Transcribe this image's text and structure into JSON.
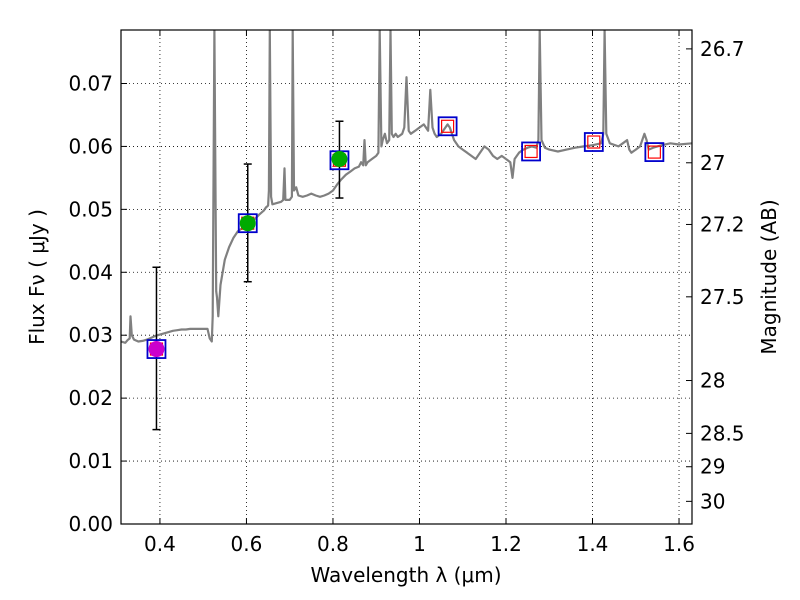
{
  "chart_data": {
    "type": "scatter",
    "xlabel": "Wavelength  λ (μm)",
    "ylabel": "Flux  Fν  ( μJy )",
    "y2label": "Magnitude (AB)",
    "xlim": [
      0.31,
      1.63
    ],
    "ylim": [
      0.0,
      0.0785
    ],
    "grid": true,
    "x_ticks": [
      0.4,
      0.6,
      0.8,
      1.0,
      1.2,
      1.4,
      1.6
    ],
    "x_tick_labels": [
      "0.4",
      "0.6",
      "0.8",
      "1",
      "1.2",
      "1.4",
      "1.6"
    ],
    "y_ticks": [
      0.0,
      0.01,
      0.02,
      0.03,
      0.04,
      0.05,
      0.06,
      0.07
    ],
    "y_tick_labels": [
      "0.00",
      "0.01",
      "0.02",
      "0.03",
      "0.04",
      "0.05",
      "0.06",
      "0.07"
    ],
    "y2_ticks": [
      {
        "label": "26.7",
        "flux": 0.0755
      },
      {
        "label": "27",
        "flux": 0.0574
      },
      {
        "label": "27.2",
        "flux": 0.0476
      },
      {
        "label": "27.5",
        "flux": 0.0361
      },
      {
        "label": "28",
        "flux": 0.0228
      },
      {
        "label": "28.5",
        "flux": 0.0144
      },
      {
        "label": "29",
        "flux": 0.0091
      },
      {
        "label": "30",
        "flux": 0.0036
      }
    ],
    "colors": {
      "spectrum": "#808080",
      "model_box": "#0000cc",
      "model_inner": "#ff0000",
      "magenta_point": "#cc00cc",
      "green_point": "#00aa00",
      "errorbar": "#000000"
    },
    "series": [
      {
        "kind": "spectrum",
        "points": [
          [
            0.31,
            0.029
          ],
          [
            0.32,
            0.0288
          ],
          [
            0.325,
            0.0292
          ],
          [
            0.33,
            0.0295
          ],
          [
            0.332,
            0.033
          ],
          [
            0.335,
            0.03
          ],
          [
            0.34,
            0.0293
          ],
          [
            0.35,
            0.029
          ],
          [
            0.36,
            0.0291
          ],
          [
            0.37,
            0.0293
          ],
          [
            0.38,
            0.0296
          ],
          [
            0.39,
            0.0299
          ],
          [
            0.4,
            0.0301
          ],
          [
            0.41,
            0.0303
          ],
          [
            0.42,
            0.0305
          ],
          [
            0.43,
            0.0307
          ],
          [
            0.44,
            0.0308
          ],
          [
            0.45,
            0.0309
          ],
          [
            0.46,
            0.0309
          ],
          [
            0.47,
            0.031
          ],
          [
            0.48,
            0.031
          ],
          [
            0.49,
            0.031
          ],
          [
            0.5,
            0.031
          ],
          [
            0.51,
            0.031
          ],
          [
            0.515,
            0.0295
          ],
          [
            0.52,
            0.029
          ],
          [
            0.522,
            0.033
          ],
          [
            0.526,
            0.0785
          ],
          [
            0.53,
            0.037
          ],
          [
            0.532,
            0.036
          ],
          [
            0.535,
            0.033
          ],
          [
            0.54,
            0.038
          ],
          [
            0.55,
            0.042
          ],
          [
            0.56,
            0.044
          ],
          [
            0.57,
            0.0455
          ],
          [
            0.58,
            0.0465
          ],
          [
            0.59,
            0.047
          ],
          [
            0.6,
            0.0473
          ],
          [
            0.61,
            0.0478
          ],
          [
            0.62,
            0.0485
          ],
          [
            0.63,
            0.0492
          ],
          [
            0.64,
            0.0498
          ],
          [
            0.645,
            0.0503
          ],
          [
            0.65,
            0.0506
          ],
          [
            0.652,
            0.053
          ],
          [
            0.654,
            0.0785
          ],
          [
            0.657,
            0.052
          ],
          [
            0.66,
            0.0508
          ],
          [
            0.67,
            0.051
          ],
          [
            0.68,
            0.0512
          ],
          [
            0.685,
            0.0515
          ],
          [
            0.688,
            0.0565
          ],
          [
            0.69,
            0.0515
          ],
          [
            0.7,
            0.0515
          ],
          [
            0.705,
            0.052
          ],
          [
            0.707,
            0.0785
          ],
          [
            0.71,
            0.053
          ],
          [
            0.715,
            0.0535
          ],
          [
            0.72,
            0.0522
          ],
          [
            0.73,
            0.052
          ],
          [
            0.74,
            0.0522
          ],
          [
            0.75,
            0.0525
          ],
          [
            0.76,
            0.0522
          ],
          [
            0.77,
            0.052
          ],
          [
            0.78,
            0.0522
          ],
          [
            0.79,
            0.0525
          ],
          [
            0.8,
            0.053
          ],
          [
            0.81,
            0.054
          ],
          [
            0.82,
            0.0548
          ],
          [
            0.83,
            0.0555
          ],
          [
            0.84,
            0.056
          ],
          [
            0.85,
            0.0565
          ],
          [
            0.86,
            0.0568
          ],
          [
            0.865,
            0.0575
          ],
          [
            0.87,
            0.057
          ],
          [
            0.873,
            0.061
          ],
          [
            0.876,
            0.057
          ],
          [
            0.88,
            0.0575
          ],
          [
            0.89,
            0.058
          ],
          [
            0.9,
            0.0585
          ],
          [
            0.905,
            0.059
          ],
          [
            0.908,
            0.0785
          ],
          [
            0.912,
            0.06
          ],
          [
            0.915,
            0.061
          ],
          [
            0.92,
            0.062
          ],
          [
            0.925,
            0.0605
          ],
          [
            0.93,
            0.061
          ],
          [
            0.933,
            0.0785
          ],
          [
            0.936,
            0.062
          ],
          [
            0.94,
            0.0615
          ],
          [
            0.945,
            0.062
          ],
          [
            0.95,
            0.0615
          ],
          [
            0.96,
            0.062
          ],
          [
            0.965,
            0.063
          ],
          [
            0.97,
            0.071
          ],
          [
            0.975,
            0.0625
          ],
          [
            0.98,
            0.062
          ],
          [
            0.99,
            0.0625
          ],
          [
            1.0,
            0.063
          ],
          [
            1.01,
            0.0635
          ],
          [
            1.02,
            0.0625
          ],
          [
            1.025,
            0.069
          ],
          [
            1.03,
            0.063
          ],
          [
            1.035,
            0.062
          ],
          [
            1.04,
            0.0615
          ],
          [
            1.05,
            0.062
          ],
          [
            1.06,
            0.063
          ],
          [
            1.065,
            0.0635
          ],
          [
            1.07,
            0.063
          ],
          [
            1.08,
            0.061
          ],
          [
            1.09,
            0.06
          ],
          [
            1.1,
            0.0595
          ],
          [
            1.11,
            0.059
          ],
          [
            1.12,
            0.0585
          ],
          [
            1.13,
            0.058
          ],
          [
            1.14,
            0.059
          ],
          [
            1.15,
            0.06
          ],
          [
            1.16,
            0.0595
          ],
          [
            1.17,
            0.0585
          ],
          [
            1.18,
            0.058
          ],
          [
            1.19,
            0.0585
          ],
          [
            1.2,
            0.058
          ],
          [
            1.21,
            0.0575
          ],
          [
            1.215,
            0.055
          ],
          [
            1.22,
            0.058
          ],
          [
            1.23,
            0.059
          ],
          [
            1.24,
            0.0595
          ],
          [
            1.25,
            0.0598
          ],
          [
            1.26,
            0.06
          ],
          [
            1.27,
            0.0598
          ],
          [
            1.275,
            0.061
          ],
          [
            1.278,
            0.0785
          ],
          [
            1.282,
            0.061
          ],
          [
            1.29,
            0.0598
          ],
          [
            1.3,
            0.0595
          ],
          [
            1.32,
            0.0592
          ],
          [
            1.34,
            0.0595
          ],
          [
            1.36,
            0.0598
          ],
          [
            1.38,
            0.06
          ],
          [
            1.4,
            0.0602
          ],
          [
            1.42,
            0.0605
          ],
          [
            1.425,
            0.062
          ],
          [
            1.428,
            0.0785
          ],
          [
            1.432,
            0.062
          ],
          [
            1.44,
            0.0605
          ],
          [
            1.46,
            0.06
          ],
          [
            1.47,
            0.0605
          ],
          [
            1.48,
            0.061
          ],
          [
            1.485,
            0.0595
          ],
          [
            1.49,
            0.059
          ],
          [
            1.5,
            0.0595
          ],
          [
            1.51,
            0.06
          ],
          [
            1.52,
            0.062
          ],
          [
            1.525,
            0.061
          ],
          [
            1.53,
            0.0595
          ],
          [
            1.54,
            0.0598
          ],
          [
            1.55,
            0.06
          ],
          [
            1.56,
            0.0602
          ],
          [
            1.58,
            0.0605
          ],
          [
            1.6,
            0.0603
          ],
          [
            1.63,
            0.0605
          ]
        ]
      },
      {
        "kind": "model_boxes",
        "points": [
          [
            0.392,
            0.0278
          ],
          [
            0.603,
            0.0478
          ],
          [
            0.815,
            0.0578
          ],
          [
            1.065,
            0.0632
          ],
          [
            1.258,
            0.0592
          ],
          [
            1.403,
            0.0607
          ],
          [
            1.543,
            0.0591
          ]
        ]
      },
      {
        "kind": "photometry",
        "points": [
          {
            "x": 0.392,
            "y": 0.0278,
            "err_low": 0.015,
            "err_high": 0.0408,
            "color": "magenta"
          },
          {
            "x": 0.603,
            "y": 0.0478,
            "err_low": 0.0385,
            "err_high": 0.0572,
            "color": "green"
          },
          {
            "x": 0.815,
            "y": 0.058,
            "err_low": 0.0518,
            "err_high": 0.064,
            "color": "green"
          }
        ]
      }
    ]
  }
}
